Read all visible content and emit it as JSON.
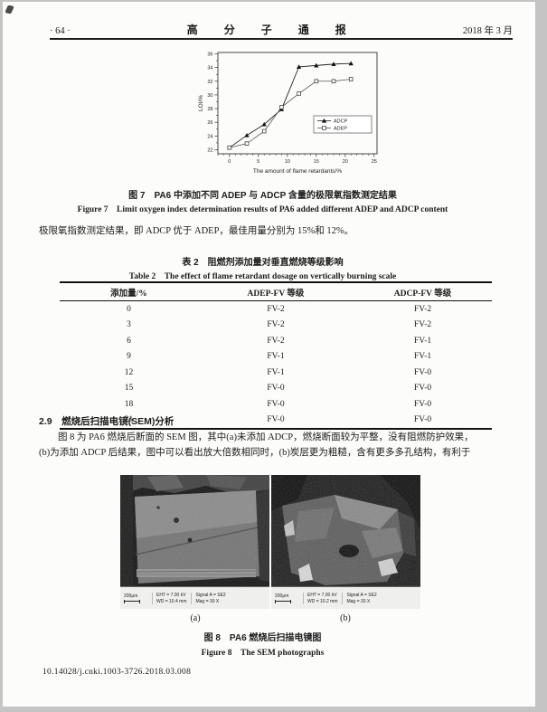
{
  "header": {
    "page_number": "· 64 ·",
    "journal_title": "高 分 子 通 报",
    "issue_date": "2018 年 3 月"
  },
  "chart_data": {
    "type": "line",
    "title": "",
    "xlabel": "The amount of flame retardants/%",
    "ylabel": "LOI/%",
    "xlim": [
      -2,
      25.5
    ],
    "ylim": [
      21.4,
      36.2
    ],
    "xticks": [
      0,
      5,
      10,
      15,
      20,
      25
    ],
    "yticks": [
      22,
      24,
      26,
      28,
      30,
      32,
      34,
      36
    ],
    "x": [
      0,
      3,
      6,
      9,
      12,
      15,
      18,
      21
    ],
    "series": [
      {
        "name": "ADCP",
        "marker": "triangle-filled",
        "values": [
          22.3,
          24.1,
          25.7,
          27.9,
          34.1,
          34.3,
          34.5,
          34.6
        ]
      },
      {
        "name": "ADEP",
        "marker": "square-open",
        "values": [
          22.3,
          22.9,
          24.7,
          28.2,
          30.2,
          32.0,
          32.0,
          32.3
        ]
      }
    ],
    "legend_position": "right-middle",
    "grid": false
  },
  "figure7": {
    "caption_zh": "图 7　PA6 中添加不同 ADEP 与 ADCP 含量的极限氧指数测定结果",
    "caption_en": "Figure 7　Limit oxygen index determination results of PA6 added different ADEP and ADCP content"
  },
  "paragraph1": "极限氧指数测定结果，即 ADCP 优于 ADEP，最佳用量分别为 15%和 12%。",
  "table2": {
    "caption_zh": "表 2　阻燃剂添加量对垂直燃烧等级影响",
    "caption_en": "Table 2　The effect of flame retardant dosage on vertically burning scale",
    "columns": [
      "添加量/%",
      "ADEP-FV 等级",
      "ADCP-FV 等级"
    ],
    "rows": [
      [
        "0",
        "FV-2",
        "FV-2"
      ],
      [
        "3",
        "FV-2",
        "FV-2"
      ],
      [
        "6",
        "FV-2",
        "FV-1"
      ],
      [
        "9",
        "FV-1",
        "FV-1"
      ],
      [
        "12",
        "FV-1",
        "FV-0"
      ],
      [
        "15",
        "FV-0",
        "FV-0"
      ],
      [
        "18",
        "FV-0",
        "FV-0"
      ],
      [
        "21",
        "FV-0",
        "FV-0"
      ]
    ]
  },
  "section29": {
    "heading": "2.9　燃烧后扫描电镜(SEM)分析",
    "lines": [
      "图 8 为 PA6 燃烧后断面的 SEM 图，其中(a)未添加 ADCP，燃烧断面较为平整，没有阻燃防护效果，",
      "(b)为添加 ADCP 后结果，图中可以看出放大倍数相同时，(b)炭层更为粗糙，含有更多多孔结构，有利于"
    ]
  },
  "figure8": {
    "label_a": "(a)",
    "label_b": "(b)",
    "caption_zh": "图 8　PA6 燃烧后扫描电镜图",
    "caption_en": "Figure 8　The SEM photographs",
    "sem_a": {
      "scale": "200μm",
      "eht": "EHT = 7.00 kV",
      "wd": "WD = 10.4 mm",
      "signal": "Signal A = SE2",
      "mag": "Mag =   30 X"
    },
    "sem_b": {
      "scale": "200μm",
      "eht": "EHT = 7.00 kV",
      "wd": "WD = 10.2 mm",
      "signal": "Signal A = SE2",
      "mag": "Mag =   30 X"
    }
  },
  "doi": "10.14028/j.cnki.1003-3726.2018.03.008"
}
